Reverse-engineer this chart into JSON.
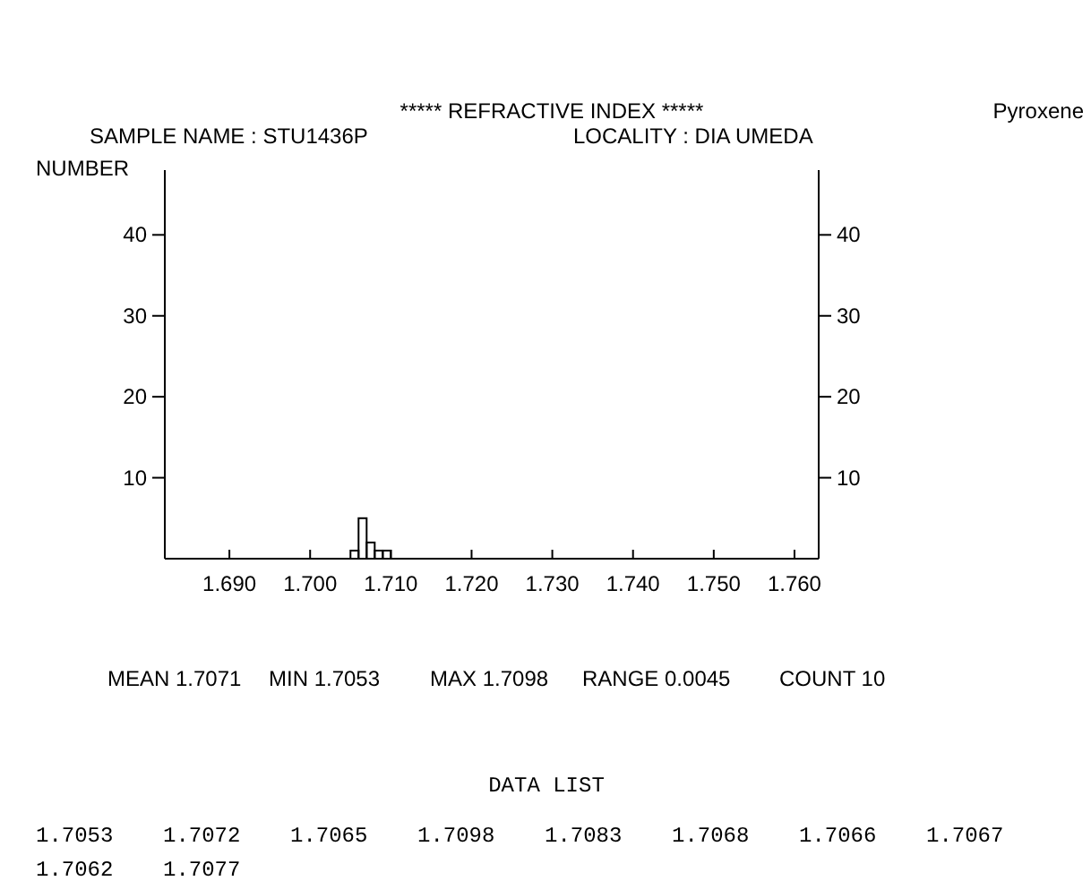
{
  "chart_data": {
    "type": "histogram",
    "title": "*****  REFRACTIVE  INDEX  *****",
    "subtitle": "SAMPLE NAME : STU1436P",
    "ylabel": "NUMBER",
    "bins": [
      1.705,
      1.706,
      1.707,
      1.708,
      1.709,
      1.71
    ],
    "values": [
      1,
      5,
      2,
      1,
      1
    ],
    "color": "#000000",
    "xlim": [
      1.682,
      1.763
    ],
    "xticks": [
      {
        "value": 1.69,
        "label": "1.690"
      },
      {
        "value": 1.7,
        "label": "1.700"
      },
      {
        "value": 1.71,
        "label": "1.710"
      },
      {
        "value": 1.72,
        "label": "1.720"
      },
      {
        "value": 1.73,
        "label": "1.730"
      },
      {
        "value": 1.74,
        "label": "1.740"
      },
      {
        "value": 1.75,
        "label": "1.750"
      },
      {
        "value": 1.76,
        "label": "1.760"
      }
    ],
    "ylim": [
      0,
      48
    ],
    "yticks": [
      10,
      20,
      30,
      40
    ],
    "y2lim": [
      0,
      48
    ],
    "y2ticks": [
      10,
      20,
      30,
      40
    ],
    "annotations": [
      "LOCALITY : DIA UMEDA",
      "Pyroxene",
      "MEAN  1.7071",
      "MIN 1.7053",
      "MAX 1.7098",
      "RANGE 0.0045",
      "COUNT  10",
      "DATA LIST",
      "1.7053",
      "1.7072",
      "1.7065",
      "1.7098",
      "1.7083",
      "1.7068",
      "1.7066",
      "1.7067",
      "1.7062",
      "1.7077"
    ]
  }
}
